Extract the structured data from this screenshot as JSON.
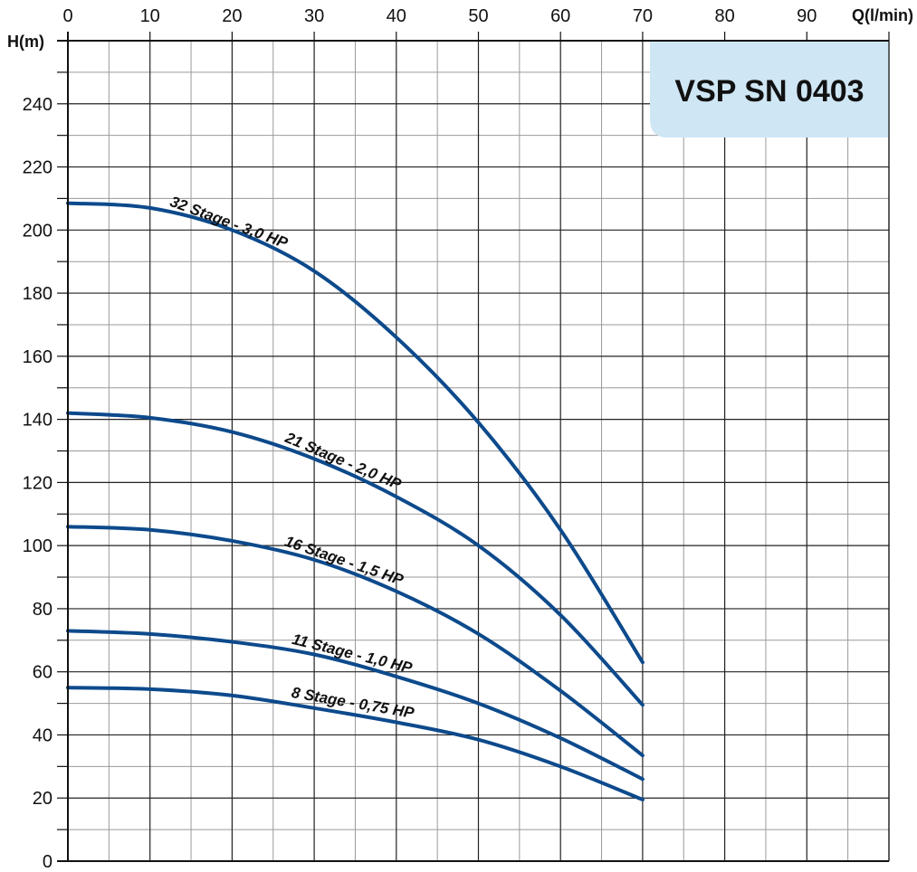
{
  "chart_data": {
    "type": "line",
    "title": "VSP SN 0403",
    "xlabel": "Q(l/min)",
    "ylabel": "H(m)",
    "xlim": [
      0,
      100
    ],
    "ylim": [
      0,
      260
    ],
    "x_ticks": [
      0,
      10,
      20,
      30,
      40,
      50,
      60,
      70,
      80,
      90
    ],
    "y_ticks": [
      0,
      20,
      40,
      60,
      80,
      100,
      120,
      140,
      160,
      180,
      200,
      220,
      240
    ],
    "grid": true,
    "x_axis_position": "top",
    "series": [
      {
        "name": "32 Stage - 3,0 HP",
        "color": "#0d4a8c",
        "points": [
          [
            0,
            208.5
          ],
          [
            10,
            207
          ],
          [
            20,
            200
          ],
          [
            30,
            187
          ],
          [
            40,
            166
          ],
          [
            50,
            139
          ],
          [
            60,
            105
          ],
          [
            70,
            63
          ]
        ]
      },
      {
        "name": "21 Stage - 2,0 HP",
        "color": "#0d4a8c",
        "points": [
          [
            0,
            142
          ],
          [
            10,
            140.5
          ],
          [
            20,
            136
          ],
          [
            30,
            127.5
          ],
          [
            40,
            115.5
          ],
          [
            50,
            100
          ],
          [
            60,
            78
          ],
          [
            70,
            49.5
          ]
        ]
      },
      {
        "name": "16 Stage - 1,5 HP",
        "color": "#0d4a8c",
        "points": [
          [
            0,
            106
          ],
          [
            10,
            105
          ],
          [
            20,
            101.5
          ],
          [
            30,
            95.5
          ],
          [
            40,
            85.5
          ],
          [
            50,
            72
          ],
          [
            60,
            54
          ],
          [
            70,
            33.5
          ]
        ]
      },
      {
        "name": "11 Stage - 1,0 HP",
        "color": "#0d4a8c",
        "points": [
          [
            0,
            73
          ],
          [
            10,
            72
          ],
          [
            20,
            69.5
          ],
          [
            30,
            65.5
          ],
          [
            40,
            58.5
          ],
          [
            50,
            50
          ],
          [
            60,
            39
          ],
          [
            70,
            26
          ]
        ]
      },
      {
        "name": "8 Stage - 0,75 HP",
        "color": "#0d4a8c",
        "points": [
          [
            0,
            55
          ],
          [
            10,
            54.5
          ],
          [
            20,
            52.5
          ],
          [
            30,
            48.5
          ],
          [
            40,
            44
          ],
          [
            50,
            38.5
          ],
          [
            60,
            30
          ],
          [
            70,
            19.5
          ]
        ]
      }
    ]
  },
  "colors": {
    "curve": "#0d4a8c",
    "badge_background": "#cfe6f4",
    "grid_major": "#222222",
    "grid_minor": "#9a9a9a"
  }
}
